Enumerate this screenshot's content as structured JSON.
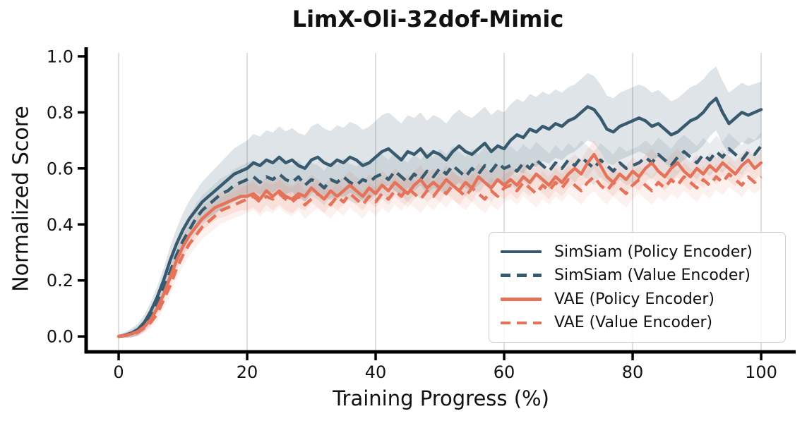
{
  "title": "LimX-Oli-32dof-Mimic",
  "colors": {
    "simsiam": "#375A6E",
    "vae": "#E5735A",
    "grid": "#cccccc",
    "spine": "#000000",
    "text": "#111111",
    "legend_border": "#cfcfcf",
    "background": "#ffffff"
  },
  "chart_data": {
    "type": "line",
    "title": "LimX-Oli-32dof-Mimic",
    "xlabel": "Training Progress (%)",
    "ylabel": "Normalized Score",
    "xlim": [
      -5.06,
      105.38
    ],
    "ylim": [
      -0.055,
      1.025
    ],
    "x_ticks": [
      0,
      20,
      40,
      60,
      80,
      100
    ],
    "x_tick_labels": [
      "0",
      "20",
      "40",
      "60",
      "80",
      "100"
    ],
    "y_ticks": [
      0.0,
      0.2,
      0.4,
      0.6,
      0.8,
      1.0
    ],
    "y_tick_labels": [
      "0.0",
      "0.2",
      "0.4",
      "0.6",
      "0.8",
      "1.0"
    ],
    "grid": "vertical-only",
    "legend_position": "lower-right",
    "x_start": 0,
    "x_step": 1,
    "band_x": [
      0,
      10,
      20,
      30,
      40,
      50,
      60,
      70,
      80,
      90,
      100
    ],
    "series": [
      {
        "name": "SimSiam (Policy Encoder)",
        "color": "#375A6E",
        "style": "solid",
        "band_opacity": 0.16,
        "band_halfwidth": [
          0.005,
          0.06,
          0.1,
          0.12,
          0.13,
          0.13,
          0.13,
          0.12,
          0.12,
          0.12,
          0.1
        ],
        "values": [
          0,
          0.005,
          0.012,
          0.025,
          0.05,
          0.09,
          0.14,
          0.2,
          0.27,
          0.33,
          0.38,
          0.42,
          0.45,
          0.48,
          0.5,
          0.52,
          0.54,
          0.56,
          0.58,
          0.59,
          0.6,
          0.62,
          0.61,
          0.63,
          0.62,
          0.64,
          0.62,
          0.63,
          0.61,
          0.6,
          0.63,
          0.64,
          0.62,
          0.61,
          0.63,
          0.62,
          0.64,
          0.63,
          0.61,
          0.62,
          0.64,
          0.66,
          0.67,
          0.65,
          0.63,
          0.66,
          0.65,
          0.67,
          0.64,
          0.66,
          0.65,
          0.63,
          0.66,
          0.68,
          0.66,
          0.65,
          0.67,
          0.69,
          0.66,
          0.68,
          0.67,
          0.7,
          0.72,
          0.71,
          0.74,
          0.73,
          0.75,
          0.74,
          0.76,
          0.75,
          0.77,
          0.78,
          0.8,
          0.82,
          0.81,
          0.78,
          0.74,
          0.73,
          0.75,
          0.76,
          0.77,
          0.78,
          0.77,
          0.75,
          0.76,
          0.74,
          0.72,
          0.73,
          0.75,
          0.77,
          0.78,
          0.8,
          0.83,
          0.85,
          0.8,
          0.76,
          0.78,
          0.8,
          0.79,
          0.8,
          0.81
        ]
      },
      {
        "name": "SimSiam (Value Encoder)",
        "color": "#375A6E",
        "style": "dashed",
        "band_opacity": 0.11,
        "band_halfwidth": [
          0.004,
          0.05,
          0.06,
          0.06,
          0.07,
          0.07,
          0.07,
          0.06,
          0.06,
          0.06,
          0.05
        ],
        "values": [
          0,
          0.004,
          0.01,
          0.02,
          0.04,
          0.07,
          0.12,
          0.17,
          0.23,
          0.29,
          0.34,
          0.38,
          0.42,
          0.45,
          0.47,
          0.49,
          0.51,
          0.52,
          0.54,
          0.55,
          0.56,
          0.57,
          0.55,
          0.57,
          0.56,
          0.58,
          0.56,
          0.55,
          0.57,
          0.54,
          0.56,
          0.55,
          0.53,
          0.56,
          0.55,
          0.57,
          0.55,
          0.54,
          0.56,
          0.55,
          0.57,
          0.58,
          0.56,
          0.59,
          0.57,
          0.55,
          0.58,
          0.56,
          0.59,
          0.57,
          0.6,
          0.58,
          0.61,
          0.59,
          0.57,
          0.6,
          0.58,
          0.61,
          0.59,
          0.62,
          0.6,
          0.61,
          0.59,
          0.62,
          0.6,
          0.63,
          0.61,
          0.59,
          0.62,
          0.6,
          0.63,
          0.61,
          0.64,
          0.62,
          0.6,
          0.63,
          0.61,
          0.59,
          0.62,
          0.6,
          0.61,
          0.62,
          0.64,
          0.62,
          0.65,
          0.63,
          0.61,
          0.64,
          0.66,
          0.64,
          0.62,
          0.65,
          0.63,
          0.66,
          0.64,
          0.67,
          0.65,
          0.63,
          0.66,
          0.65,
          0.68
        ]
      },
      {
        "name": "VAE (Policy Encoder)",
        "color": "#E5735A",
        "style": "solid",
        "band_opacity": 0.13,
        "band_halfwidth": [
          0.004,
          0.04,
          0.05,
          0.05,
          0.05,
          0.05,
          0.05,
          0.05,
          0.05,
          0.05,
          0.04
        ],
        "values": [
          0,
          0.004,
          0.009,
          0.018,
          0.035,
          0.06,
          0.1,
          0.15,
          0.21,
          0.27,
          0.32,
          0.36,
          0.39,
          0.42,
          0.44,
          0.46,
          0.47,
          0.48,
          0.49,
          0.5,
          0.5,
          0.51,
          0.49,
          0.52,
          0.5,
          0.52,
          0.5,
          0.49,
          0.51,
          0.5,
          0.53,
          0.51,
          0.49,
          0.52,
          0.5,
          0.52,
          0.54,
          0.52,
          0.5,
          0.53,
          0.51,
          0.54,
          0.52,
          0.55,
          0.53,
          0.51,
          0.54,
          0.56,
          0.53,
          0.55,
          0.53,
          0.56,
          0.54,
          0.52,
          0.55,
          0.53,
          0.57,
          0.55,
          0.53,
          0.56,
          0.54,
          0.56,
          0.54,
          0.57,
          0.55,
          0.58,
          0.56,
          0.54,
          0.57,
          0.55,
          0.58,
          0.6,
          0.58,
          0.62,
          0.65,
          0.61,
          0.57,
          0.55,
          0.58,
          0.56,
          0.59,
          0.57,
          0.6,
          0.62,
          0.59,
          0.57,
          0.6,
          0.62,
          0.59,
          0.57,
          0.6,
          0.58,
          0.61,
          0.59,
          0.62,
          0.6,
          0.58,
          0.61,
          0.63,
          0.6,
          0.62
        ]
      },
      {
        "name": "VAE (Value Encoder)",
        "color": "#E5735A",
        "style": "dashed",
        "band_opacity": 0.1,
        "band_halfwidth": [
          0.003,
          0.04,
          0.05,
          0.05,
          0.05,
          0.05,
          0.05,
          0.05,
          0.05,
          0.05,
          0.04
        ],
        "values": [
          0,
          0.003,
          0.008,
          0.015,
          0.03,
          0.05,
          0.08,
          0.13,
          0.18,
          0.24,
          0.29,
          0.33,
          0.36,
          0.39,
          0.41,
          0.43,
          0.45,
          0.46,
          0.47,
          0.48,
          0.49,
          0.5,
          0.48,
          0.5,
          0.49,
          0.51,
          0.49,
          0.48,
          0.5,
          0.47,
          0.49,
          0.51,
          0.49,
          0.47,
          0.5,
          0.48,
          0.51,
          0.49,
          0.47,
          0.5,
          0.48,
          0.51,
          0.49,
          0.52,
          0.5,
          0.53,
          0.51,
          0.49,
          0.52,
          0.5,
          0.53,
          0.51,
          0.54,
          0.52,
          0.5,
          0.53,
          0.51,
          0.49,
          0.52,
          0.5,
          0.53,
          0.54,
          0.52,
          0.55,
          0.53,
          0.51,
          0.54,
          0.52,
          0.55,
          0.53,
          0.56,
          0.54,
          0.52,
          0.55,
          0.57,
          0.54,
          0.52,
          0.55,
          0.53,
          0.51,
          0.54,
          0.56,
          0.54,
          0.52,
          0.55,
          0.53,
          0.56,
          0.54,
          0.57,
          0.55,
          0.53,
          0.56,
          0.54,
          0.57,
          0.55,
          0.58,
          0.56,
          0.54,
          0.57,
          0.55,
          0.57
        ]
      }
    ]
  }
}
